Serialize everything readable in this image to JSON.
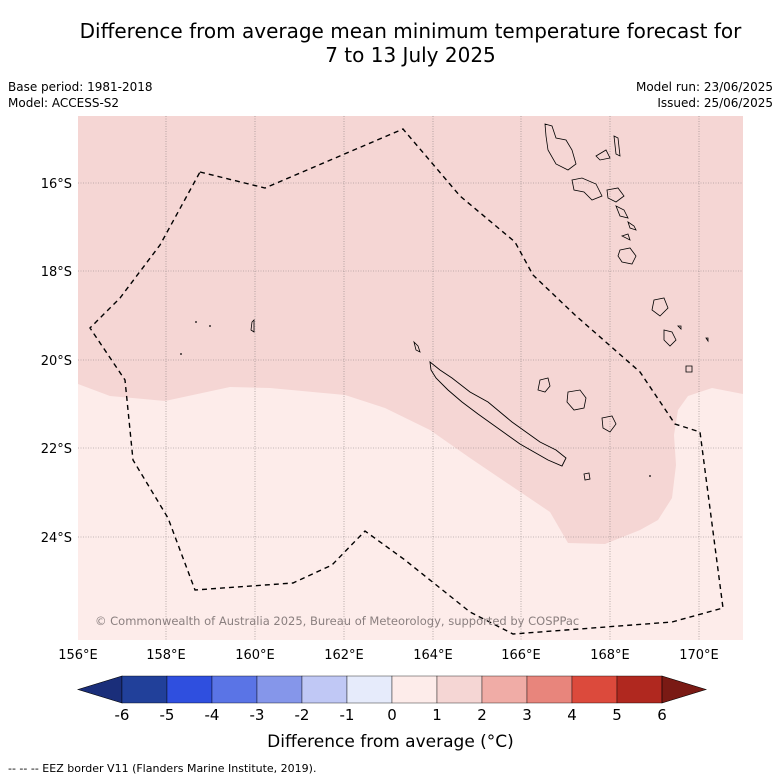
{
  "title_line1": "Difference from average mean minimum temperature forecast for",
  "title_line2": "7 to 13 July 2025",
  "base_period": "Base period: 1981-2018",
  "model": "Model: ACCESS-S2",
  "model_run": "Model run: 23/06/2025",
  "issued": "Issued: 25/06/2025",
  "copyright": "© Commonwealth of Australia 2025, Bureau of Meteorology, supported by COSPPac",
  "lon_ticks": [
    "156°E",
    "158°E",
    "160°E",
    "162°E",
    "164°E",
    "166°E",
    "168°E",
    "170°E"
  ],
  "lat_ticks": [
    "16°S",
    "18°S",
    "20°S",
    "22°S",
    "24°S"
  ],
  "colorbar": {
    "ticks": [
      "-6",
      "-5",
      "-4",
      "-3",
      "-2",
      "-1",
      "0",
      "1",
      "2",
      "3",
      "4",
      "5",
      "6"
    ],
    "colors": [
      "#21409a",
      "#2f4fdf",
      "#5a74e6",
      "#8596ea",
      "#c0c8f5",
      "#e6ebfb",
      "#fdecea",
      "#f5d6d4",
      "#f0aca6",
      "#e8857c",
      "#dc4a3c",
      "#b0281f"
    ],
    "under_color": "#1a2e7a",
    "over_color": "#7a1a14",
    "label": "Difference from average (°C)"
  },
  "footnote": "-- -- -- EEZ border V11 (Flanders Marine Institute, 2019).",
  "map_fill": {
    "anomaly_1_to_2_color": "#f5d6d4",
    "anomaly_0_to_1_color": "#fdecea"
  }
}
